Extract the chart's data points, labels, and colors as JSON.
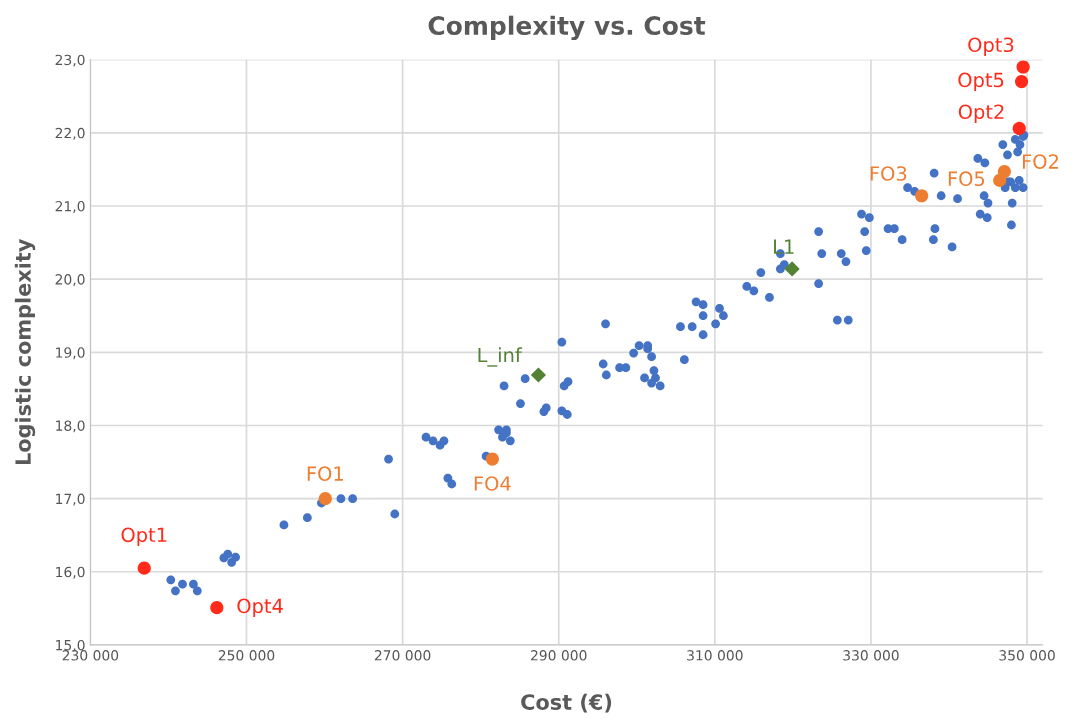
{
  "chart_data": {
    "type": "scatter",
    "title": "Complexity vs. Cost",
    "xlabel": "Cost (€)",
    "ylabel": "Logistic complexity",
    "xlim": [
      230000,
      352000
    ],
    "ylim": [
      15,
      23
    ],
    "xticks": [
      {
        "value": 230000,
        "label": "230 000"
      },
      {
        "value": 250000,
        "label": "250 000"
      },
      {
        "value": 270000,
        "label": "270 000"
      },
      {
        "value": 290000,
        "label": "290 000"
      },
      {
        "value": 310000,
        "label": "310 000"
      },
      {
        "value": 330000,
        "label": "330 000"
      },
      {
        "value": 350000,
        "label": "350 000"
      }
    ],
    "yticks": [
      {
        "value": 15,
        "label": "15,0"
      },
      {
        "value": 16,
        "label": "16,0"
      },
      {
        "value": 17,
        "label": "17,0"
      },
      {
        "value": 18,
        "label": "18,0"
      },
      {
        "value": 19,
        "label": "19,0"
      },
      {
        "value": 20,
        "label": "20,0"
      },
      {
        "value": 21,
        "label": "21,0"
      },
      {
        "value": 22,
        "label": "22,0"
      },
      {
        "value": 23,
        "label": "23,0"
      }
    ],
    "grid": true,
    "marker": "circle",
    "series": [
      {
        "color": "#4472c4",
        "x": [
          240300,
          240900,
          241800,
          243200,
          243700,
          247100,
          247600,
          248100,
          248600,
          254800,
          257800,
          259600,
          262100,
          263600,
          268200,
          269000,
          273000,
          273900,
          274800,
          275300,
          275800,
          276300,
          280700,
          282300,
          283300,
          282800,
          283300,
          283800,
          283000,
          285100,
          285700,
          288100,
          288400,
          290400,
          290400,
          291100,
          290700,
          291200,
          296000,
          295700,
          296100,
          297800,
          298600,
          299600,
          300300,
          301400,
          301400,
          301900,
          302200,
          301000,
          302400,
          301900,
          303000,
          306100,
          305600,
          307100,
          307600,
          308500,
          308500,
          308500,
          310100,
          310600,
          311100,
          314100,
          315000,
          315900,
          317000,
          318400,
          318400,
          318900,
          323300,
          323700,
          323300,
          326200,
          326800,
          325700,
          327100,
          328800,
          329800,
          329200,
          329400,
          332200,
          333000,
          334000,
          338000,
          338200,
          340400,
          334700,
          335600,
          338100,
          339000,
          341100,
          343700,
          344600,
          344500,
          345000,
          344000,
          344900,
          347500,
          348800,
          347600,
          347200,
          348500,
          349500,
          349000,
          348100,
          348000,
          349600,
          349500,
          349100,
          346900,
          347900,
          348500
        ],
        "values": [
          15.89,
          15.74,
          15.83,
          15.83,
          15.74,
          16.19,
          16.24,
          16.13,
          16.2,
          16.64,
          16.74,
          16.94,
          17.0,
          17.0,
          17.54,
          16.79,
          17.84,
          17.79,
          17.73,
          17.79,
          17.28,
          17.2,
          17.58,
          17.94,
          17.94,
          17.84,
          17.9,
          17.79,
          18.54,
          18.3,
          18.64,
          18.19,
          18.24,
          19.14,
          18.2,
          18.15,
          18.54,
          18.6,
          19.39,
          18.84,
          18.69,
          18.79,
          18.79,
          18.99,
          19.09,
          19.09,
          19.05,
          18.94,
          18.75,
          18.65,
          18.65,
          18.58,
          18.54,
          18.9,
          19.35,
          19.35,
          19.69,
          19.65,
          19.5,
          19.24,
          19.39,
          19.6,
          19.5,
          19.9,
          19.84,
          20.09,
          19.75,
          20.35,
          20.14,
          20.2,
          20.65,
          20.35,
          19.94,
          20.35,
          20.24,
          19.44,
          19.44,
          20.89,
          20.84,
          20.65,
          20.39,
          20.69,
          20.69,
          20.54,
          20.54,
          20.69,
          20.44,
          21.25,
          21.2,
          21.45,
          21.14,
          21.1,
          21.65,
          21.59,
          21.14,
          21.04,
          20.89,
          20.84,
          21.7,
          21.74,
          21.33,
          21.25,
          21.25,
          21.25,
          21.35,
          21.04,
          20.74,
          21.97,
          21.95,
          21.84,
          21.84,
          21.33,
          21.91
        ]
      },
      {
        "name": "Opt1",
        "color": "#ff2a1a",
        "x": [
          236900
        ],
        "values": [
          16.05
        ]
      },
      {
        "name": "Opt4",
        "color": "#ff2a1a",
        "x": [
          246200
        ],
        "values": [
          15.51
        ]
      },
      {
        "name": "Opt3",
        "color": "#ff2a1a",
        "x": [
          349500
        ],
        "values": [
          22.9
        ]
      },
      {
        "name": "Opt5",
        "color": "#ff2a1a",
        "x": [
          349300
        ],
        "values": [
          22.7
        ]
      },
      {
        "name": "Opt2",
        "color": "#ff2a1a",
        "x": [
          349000
        ],
        "values": [
          22.06
        ]
      },
      {
        "name": "FO1",
        "color": "#ed7d31",
        "x": [
          260100
        ],
        "values": [
          17.0
        ]
      },
      {
        "name": "FO4",
        "color": "#ed7d31",
        "x": [
          281500
        ],
        "values": [
          17.54
        ]
      },
      {
        "name": "FO3",
        "color": "#ed7d31",
        "x": [
          336500
        ],
        "values": [
          21.14
        ]
      },
      {
        "name": "FO5",
        "color": "#ed7d31",
        "x": [
          346500
        ],
        "values": [
          21.35
        ]
      },
      {
        "name": "FO2",
        "color": "#ed7d31",
        "x": [
          347100
        ],
        "values": [
          21.47
        ]
      },
      {
        "name": "L_inf",
        "color": "#548235",
        "marker": "diamond",
        "x": [
          287400
        ],
        "values": [
          18.69
        ]
      },
      {
        "name": "L1",
        "color": "#548235",
        "marker": "diamond",
        "x": [
          319900
        ],
        "values": [
          20.14
        ]
      }
    ]
  }
}
